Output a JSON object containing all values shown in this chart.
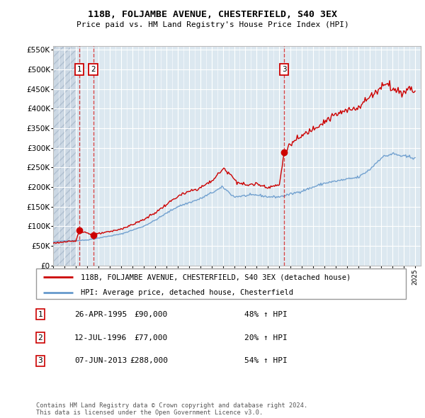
{
  "title": "118B, FOLJAMBE AVENUE, CHESTERFIELD, S40 3EX",
  "subtitle": "Price paid vs. HM Land Registry's House Price Index (HPI)",
  "hpi_color": "#6699cc",
  "price_color": "#cc0000",
  "fig_bg": "#ffffff",
  "plot_bg": "#dce8f0",
  "ylabel": "",
  "ylim": [
    0,
    560000
  ],
  "yticks": [
    0,
    50000,
    100000,
    150000,
    200000,
    250000,
    300000,
    350000,
    400000,
    450000,
    500000,
    550000
  ],
  "ytick_labels": [
    "£0",
    "£50K",
    "£100K",
    "£150K",
    "£200K",
    "£250K",
    "£300K",
    "£350K",
    "£400K",
    "£450K",
    "£500K",
    "£550K"
  ],
  "xlim_start": 1993.0,
  "xlim_end": 2025.5,
  "sale_dates": [
    1995.32,
    1996.54,
    2013.43
  ],
  "sale_prices": [
    90000,
    77000,
    288000
  ],
  "sale_labels": [
    "1",
    "2",
    "3"
  ],
  "legend_line1": "118B, FOLJAMBE AVENUE, CHESTERFIELD, S40 3EX (detached house)",
  "legend_line2": "HPI: Average price, detached house, Chesterfield",
  "table_data": [
    [
      "1",
      "26-APR-1995",
      "£90,000",
      "48% ↑ HPI"
    ],
    [
      "2",
      "12-JUL-1996",
      "£77,000",
      "20% ↑ HPI"
    ],
    [
      "3",
      "07-JUN-2013",
      "£288,000",
      "54% ↑ HPI"
    ]
  ],
  "footer": "Contains HM Land Registry data © Crown copyright and database right 2024.\nThis data is licensed under the Open Government Licence v3.0."
}
